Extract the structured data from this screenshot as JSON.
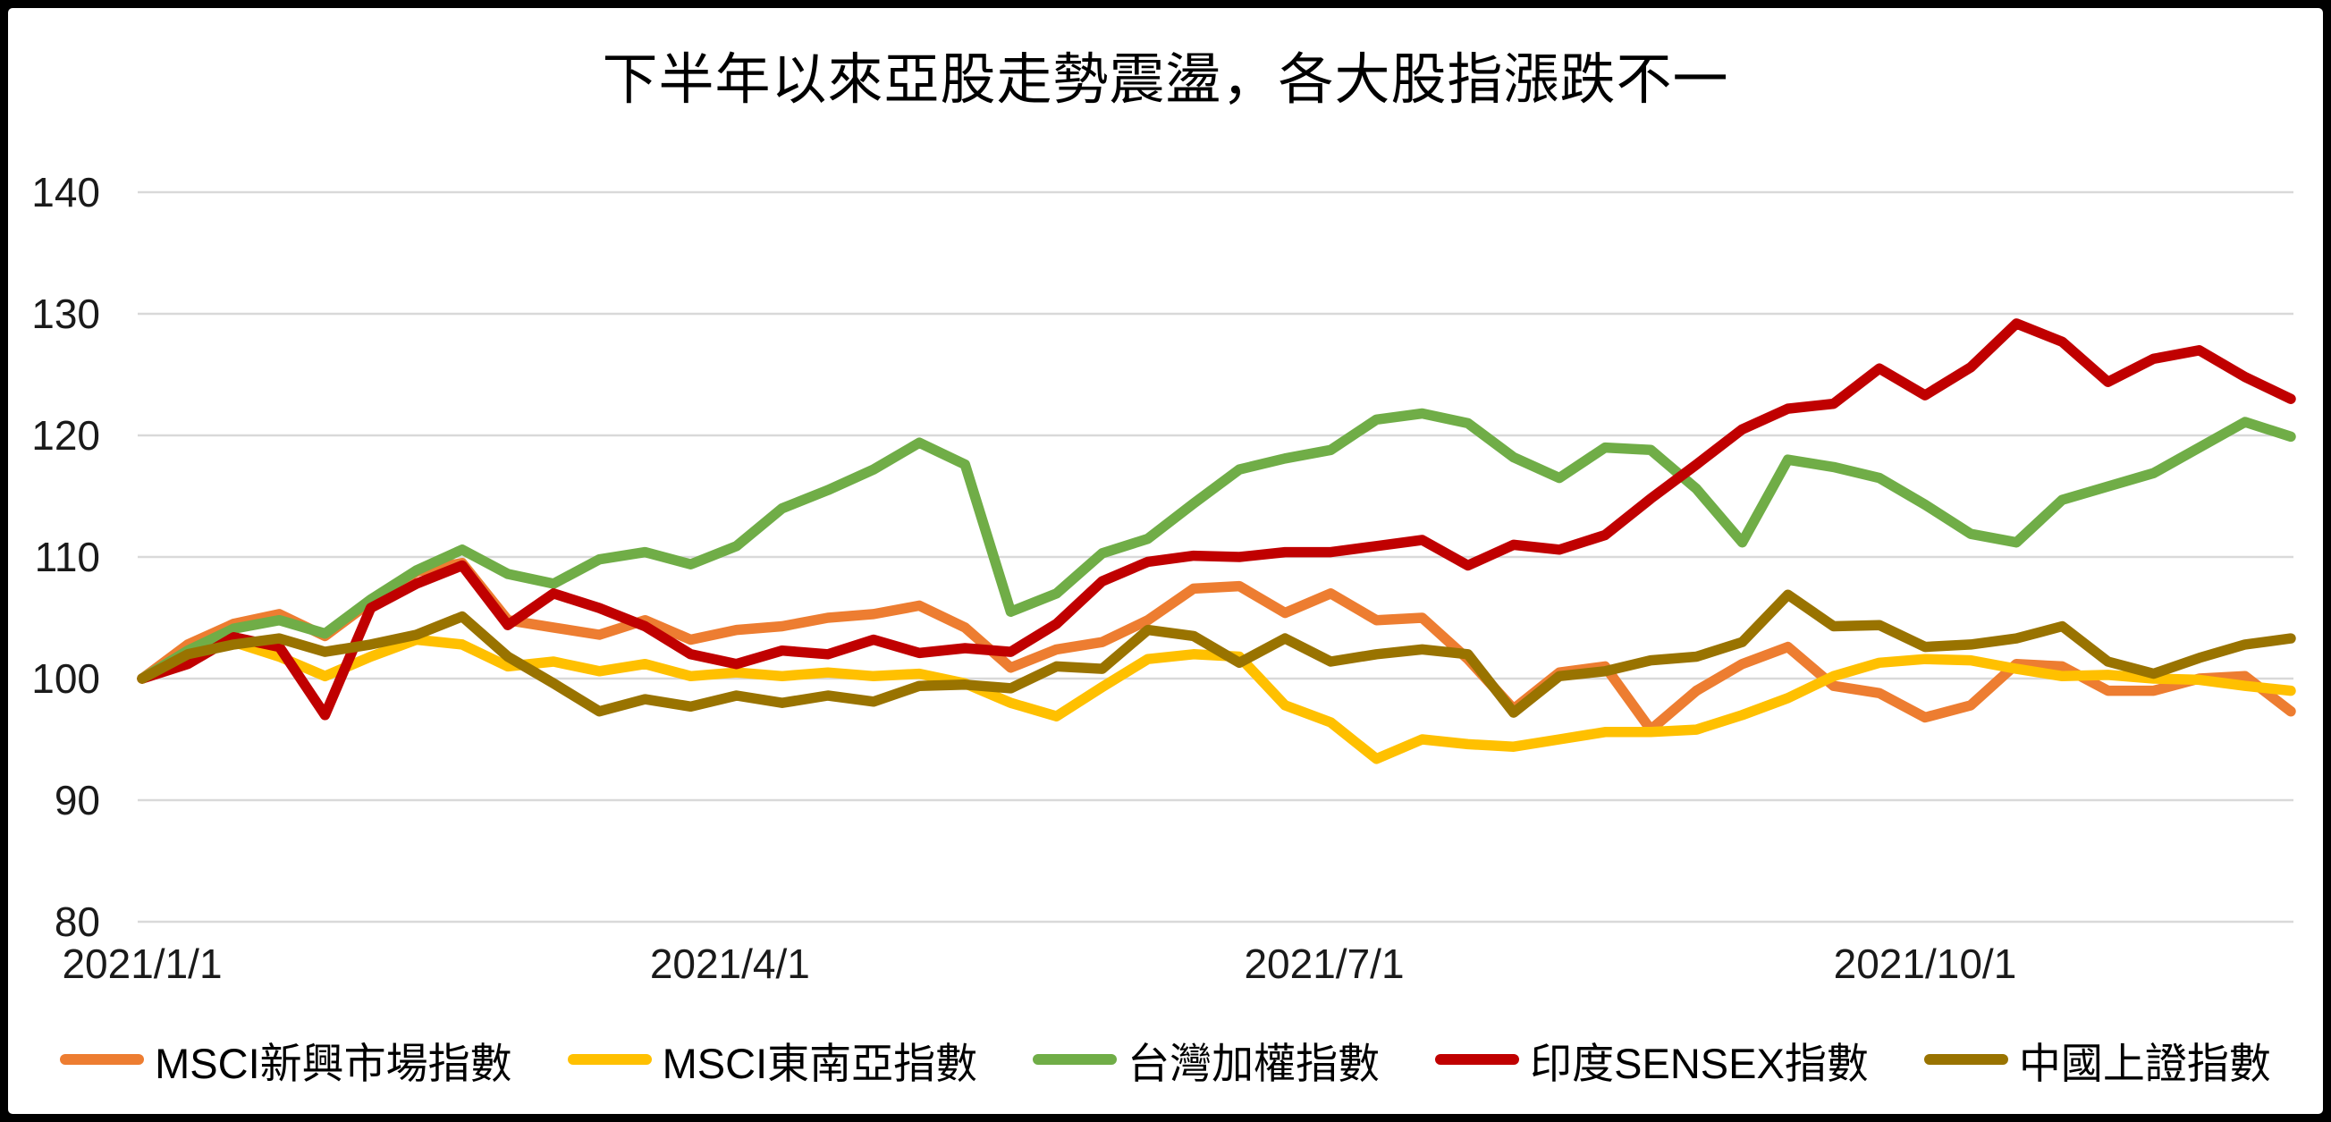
{
  "title": "下半年以來亞股走勢震盪，各大股指漲跌不一",
  "chart_data": {
    "type": "line",
    "title": "下半年以來亞股走勢震盪，各大股指漲跌不一",
    "xlabel": "",
    "ylabel": "",
    "ylim": [
      80,
      140
    ],
    "y_ticks": [
      140,
      130,
      120,
      110,
      100,
      90,
      80
    ],
    "grid": true,
    "gridline_color": "#d9d9d9",
    "axis_text_color": "#1a1a1a",
    "legend_position": "bottom",
    "baseline_note": "indexed, 2021/1/1 = 100",
    "point_interval_days": 7,
    "total_days": 329,
    "x_ticks": [
      {
        "day": 0,
        "label": "2021/1/1"
      },
      {
        "day": 90,
        "label": "2021/4/1"
      },
      {
        "day": 181,
        "label": "2021/7/1"
      },
      {
        "day": 273,
        "label": "2021/10/1"
      }
    ],
    "series": [
      {
        "name": "MSCI新興市場指數",
        "color": "#ED7D31",
        "values": [
          100,
          102.8,
          104.5,
          105.3,
          103.5,
          106.3,
          108.8,
          109.5,
          104.8,
          104.2,
          103.6,
          104.8,
          103.2,
          104.0,
          104.3,
          105.0,
          105.3,
          106.0,
          104.2,
          100.9,
          102.4,
          103.0,
          104.8,
          107.4,
          107.6,
          105.4,
          107.0,
          104.8,
          105.0,
          101.6,
          97.5,
          100.5,
          101.0,
          95.8,
          99.0,
          101.2,
          102.6,
          99.4,
          98.8,
          96.8,
          97.8,
          101.2,
          101.0,
          99.0,
          99.0,
          100.0,
          100.2,
          97.3
        ]
      },
      {
        "name": "MSCI東南亞指數",
        "color": "#FFC000",
        "values": [
          100,
          101.9,
          103.0,
          101.8,
          100.2,
          101.8,
          103.2,
          102.8,
          101.0,
          101.4,
          100.6,
          101.2,
          100.2,
          100.5,
          100.2,
          100.5,
          100.2,
          100.4,
          99.6,
          98.0,
          96.9,
          99.3,
          101.6,
          102.0,
          101.8,
          97.8,
          96.4,
          93.4,
          95.0,
          94.6,
          94.4,
          95.0,
          95.6,
          95.6,
          95.8,
          97.0,
          98.4,
          100.2,
          101.3,
          101.6,
          101.5,
          100.8,
          100.2,
          100.3,
          100.0,
          99.9,
          99.4,
          99.0
        ]
      },
      {
        "name": "台灣加權指數",
        "color": "#70AD47",
        "values": [
          100,
          102.3,
          104.1,
          104.8,
          103.7,
          106.5,
          108.9,
          110.6,
          108.6,
          107.8,
          109.8,
          110.4,
          109.4,
          110.9,
          114.0,
          115.5,
          117.2,
          119.4,
          117.6,
          105.5,
          107.0,
          110.3,
          111.5,
          114.4,
          117.2,
          118.1,
          118.8,
          121.3,
          121.8,
          121.0,
          118.2,
          116.5,
          119.0,
          118.8,
          115.6,
          111.2,
          118.0,
          117.4,
          116.5,
          114.3,
          111.9,
          111.2,
          114.7,
          115.8,
          116.9,
          119.0,
          121.1,
          119.9
        ]
      },
      {
        "name": "印度SENSEX指數",
        "color": "#C00000",
        "values": [
          100,
          101.2,
          103.4,
          102.6,
          97.0,
          105.8,
          107.8,
          109.3,
          104.4,
          107.0,
          105.8,
          104.3,
          102.0,
          101.2,
          102.3,
          102.0,
          103.2,
          102.1,
          102.5,
          102.2,
          104.5,
          108.0,
          109.6,
          110.1,
          110.0,
          110.4,
          110.4,
          110.9,
          111.4,
          109.3,
          111.0,
          110.6,
          111.8,
          114.8,
          117.6,
          120.5,
          122.2,
          122.6,
          125.5,
          123.3,
          125.6,
          129.2,
          127.7,
          124.4,
          126.3,
          127.0,
          124.8,
          123.0
        ]
      },
      {
        "name": "中國上證指數",
        "color": "#997300",
        "values": [
          100,
          102.0,
          102.8,
          103.3,
          102.2,
          102.8,
          103.6,
          105.1,
          101.8,
          99.6,
          97.3,
          98.3,
          97.7,
          98.6,
          98.0,
          98.6,
          98.1,
          99.4,
          99.5,
          99.2,
          101.0,
          100.8,
          104.0,
          103.5,
          101.3,
          103.3,
          101.4,
          102.0,
          102.4,
          102.0,
          97.2,
          100.2,
          100.6,
          101.5,
          101.8,
          103.0,
          106.9,
          104.3,
          104.4,
          102.6,
          102.8,
          103.3,
          104.3,
          101.4,
          100.4,
          101.7,
          102.8,
          103.3
        ]
      }
    ]
  }
}
